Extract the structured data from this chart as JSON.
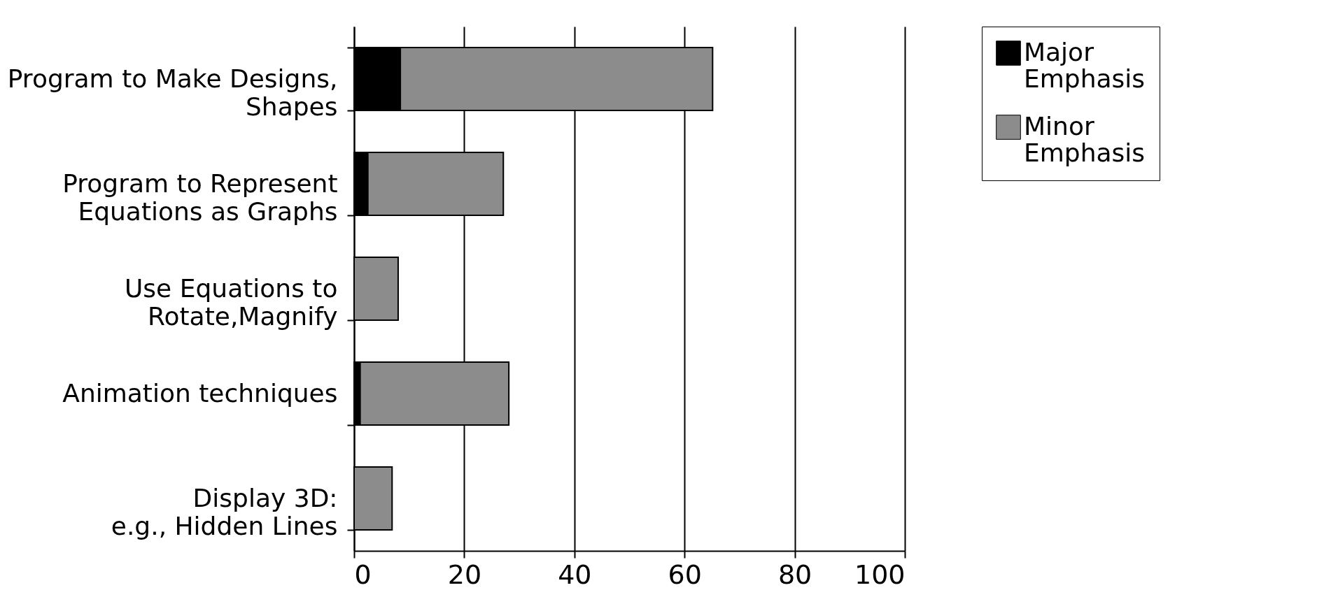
{
  "chart_data": {
    "type": "bar",
    "orientation": "horizontal",
    "stacked": true,
    "categories": [
      "Program to Make Designs,\nShapes",
      "Program to Represent\nEquations as Graphs",
      "Use Equations to\nRotate,Magnify",
      "Animation techniques",
      "Display 3D:\ne.g., Hidden Lines"
    ],
    "series": [
      {
        "name": "Major Emphasis",
        "color": "#000000",
        "values": [
          8.4,
          2.5,
          0,
          1.1,
          0
        ]
      },
      {
        "name": "Minor Emphasis",
        "color": "#8c8c8c",
        "values": [
          56.7,
          24.6,
          8.0,
          27.0,
          6.9
        ]
      }
    ],
    "xlim": [
      0,
      100
    ],
    "xticks": [
      0,
      20,
      40,
      60,
      80,
      100
    ],
    "grid": "x",
    "legend": "right"
  }
}
